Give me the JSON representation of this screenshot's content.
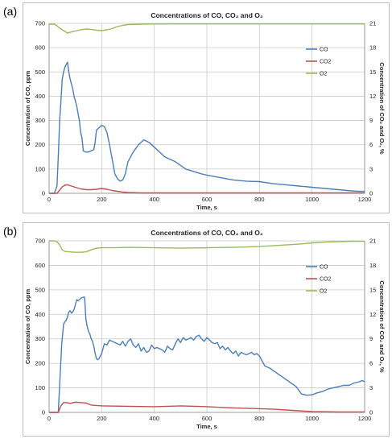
{
  "panels": [
    {
      "tag": "(a)"
    },
    {
      "tag": "(b)"
    }
  ],
  "chart_data": [
    {
      "type": "line",
      "title": "Concentrations of CO,  CO₂ and O₂",
      "xlabel": "Time, s",
      "ylabel": "Concentration of CO, ppm",
      "y2label": "Concentration of CO₂ and O₂, %",
      "xlim": [
        0,
        1200
      ],
      "ylim": [
        0,
        700
      ],
      "y2lim": [
        0,
        21
      ],
      "xticks": [
        0,
        200,
        400,
        600,
        800,
        1000,
        1200
      ],
      "yticks": [
        0,
        100,
        200,
        300,
        400,
        500,
        600,
        700
      ],
      "y2ticks": [
        0,
        3,
        6,
        9,
        12,
        15,
        18,
        21
      ],
      "grid": true,
      "legend_position": "right",
      "series": [
        {
          "name": "CO",
          "color": "#4a7ebb",
          "axis": "left",
          "x": [
            0,
            20,
            30,
            35,
            40,
            45,
            50,
            55,
            60,
            65,
            70,
            75,
            80,
            85,
            90,
            95,
            100,
            105,
            110,
            115,
            120,
            125,
            130,
            140,
            150,
            160,
            170,
            175,
            180,
            190,
            200,
            210,
            220,
            230,
            240,
            250,
            260,
            270,
            280,
            290,
            300,
            310,
            320,
            330,
            340,
            350,
            360,
            370,
            380,
            400,
            420,
            440,
            460,
            480,
            500,
            520,
            550,
            580,
            600,
            650,
            700,
            750,
            800,
            850,
            900,
            950,
            1000,
            1050,
            1100,
            1150,
            1180,
            1200
          ],
          "y": [
            0,
            0,
            30,
            150,
            300,
            380,
            470,
            500,
            520,
            530,
            540,
            500,
            470,
            450,
            430,
            400,
            380,
            360,
            330,
            300,
            250,
            230,
            175,
            170,
            170,
            175,
            180,
            210,
            260,
            270,
            280,
            275,
            250,
            200,
            140,
            80,
            60,
            50,
            55,
            80,
            130,
            150,
            170,
            185,
            200,
            210,
            220,
            215,
            210,
            190,
            170,
            150,
            140,
            130,
            115,
            100,
            90,
            80,
            75,
            65,
            55,
            50,
            48,
            40,
            35,
            30,
            25,
            20,
            15,
            10,
            8,
            8
          ]
        },
        {
          "name": "CO2",
          "color": "#c0504d",
          "axis": "right",
          "x": [
            0,
            30,
            40,
            50,
            60,
            70,
            80,
            90,
            100,
            110,
            120,
            140,
            160,
            180,
            200,
            220,
            240,
            260,
            280,
            300,
            350,
            400,
            500,
            600,
            700,
            800,
            900,
            1000,
            1100,
            1200
          ],
          "y": [
            0,
            0,
            0.4,
            0.8,
            1.0,
            1.05,
            0.95,
            0.85,
            0.75,
            0.65,
            0.55,
            0.45,
            0.45,
            0.5,
            0.6,
            0.5,
            0.35,
            0.25,
            0.15,
            0.1,
            0.05,
            0.05,
            0.05,
            0.05,
            0.05,
            0.05,
            0.05,
            0.05,
            0.05,
            0.05
          ]
        },
        {
          "name": "O2",
          "color": "#9bbb59",
          "axis": "right",
          "x": [
            0,
            20,
            30,
            40,
            50,
            60,
            70,
            80,
            100,
            120,
            140,
            160,
            180,
            200,
            220,
            240,
            260,
            280,
            300,
            350,
            400,
            500,
            600,
            700,
            800,
            900,
            1000,
            1100,
            1200
          ],
          "y": [
            20.9,
            20.9,
            20.7,
            20.4,
            20.2,
            20.0,
            19.8,
            19.9,
            20.05,
            20.2,
            20.3,
            20.25,
            20.15,
            20.1,
            20.2,
            20.35,
            20.6,
            20.75,
            20.85,
            20.9,
            20.92,
            20.93,
            20.93,
            20.93,
            20.93,
            20.93,
            20.93,
            20.93,
            20.93
          ]
        }
      ]
    },
    {
      "type": "line",
      "title": "Concentrations of CO,  CO₂ and O₂",
      "xlabel": "Time, s",
      "ylabel": "Concentration of CO, ppm",
      "y2label": "Concentration of CO₂ and O₂, %",
      "xlim": [
        0,
        1200
      ],
      "ylim": [
        0,
        700
      ],
      "y2lim": [
        0,
        21
      ],
      "xticks": [
        0,
        200,
        400,
        600,
        800,
        1000,
        1200
      ],
      "yticks": [
        0,
        100,
        200,
        300,
        400,
        500,
        600,
        700
      ],
      "y2ticks": [
        0,
        3,
        6,
        9,
        12,
        15,
        18,
        21
      ],
      "grid": true,
      "legend_position": "right",
      "series": [
        {
          "name": "CO",
          "color": "#4a7ebb",
          "axis": "left",
          "x": [
            0,
            35,
            42,
            48,
            55,
            60,
            65,
            70,
            75,
            80,
            85,
            90,
            95,
            100,
            105,
            110,
            115,
            120,
            125,
            130,
            135,
            140,
            145,
            150,
            155,
            160,
            165,
            170,
            175,
            180,
            185,
            190,
            200,
            210,
            220,
            230,
            240,
            250,
            260,
            270,
            280,
            290,
            300,
            310,
            320,
            330,
            340,
            350,
            360,
            370,
            380,
            390,
            400,
            410,
            420,
            430,
            440,
            450,
            460,
            470,
            480,
            490,
            500,
            510,
            520,
            530,
            540,
            550,
            560,
            570,
            580,
            590,
            600,
            610,
            620,
            630,
            640,
            650,
            660,
            670,
            680,
            690,
            700,
            710,
            720,
            730,
            740,
            750,
            760,
            770,
            780,
            790,
            800,
            820,
            840,
            860,
            880,
            900,
            920,
            940,
            960,
            980,
            1000,
            1020,
            1040,
            1060,
            1080,
            1100,
            1120,
            1140,
            1160,
            1180,
            1190,
            1200
          ],
          "y": [
            0,
            0,
            150,
            280,
            360,
            370,
            375,
            390,
            410,
            415,
            405,
            410,
            420,
            440,
            460,
            455,
            460,
            465,
            468,
            470,
            470,
            380,
            350,
            330,
            320,
            300,
            290,
            270,
            240,
            220,
            215,
            220,
            240,
            280,
            275,
            295,
            290,
            285,
            280,
            275,
            290,
            270,
            290,
            300,
            275,
            265,
            280,
            250,
            265,
            245,
            250,
            275,
            260,
            265,
            260,
            255,
            245,
            270,
            260,
            255,
            280,
            300,
            285,
            305,
            295,
            300,
            305,
            295,
            310,
            315,
            300,
            290,
            305,
            295,
            285,
            280,
            285,
            260,
            270,
            255,
            265,
            250,
            240,
            250,
            230,
            245,
            240,
            235,
            240,
            245,
            235,
            240,
            230,
            190,
            180,
            165,
            150,
            135,
            120,
            105,
            75,
            70,
            72,
            80,
            85,
            95,
            100,
            105,
            110,
            110,
            120,
            125,
            130,
            125
          ]
        },
        {
          "name": "CO2",
          "color": "#c0504d",
          "axis": "right",
          "x": [
            0,
            35,
            45,
            55,
            65,
            80,
            100,
            120,
            140,
            160,
            200,
            300,
            400,
            500,
            600,
            700,
            800,
            850,
            900,
            950,
            1000,
            1100,
            1200
          ],
          "y": [
            0,
            0,
            0.8,
            1.2,
            1.2,
            1.1,
            1.25,
            1.2,
            1.15,
            0.9,
            0.8,
            0.75,
            0.7,
            0.8,
            0.7,
            0.55,
            0.45,
            0.4,
            0.3,
            0.2,
            0.1,
            0.05,
            0.05
          ]
        },
        {
          "name": "O2",
          "color": "#9bbb59",
          "axis": "right",
          "x": [
            0,
            20,
            30,
            40,
            50,
            60,
            80,
            100,
            120,
            140,
            160,
            180,
            200,
            250,
            300,
            400,
            500,
            600,
            700,
            800,
            900,
            950,
            1000,
            1050,
            1100,
            1150,
            1200
          ],
          "y": [
            21.0,
            21.0,
            20.9,
            20.5,
            19.9,
            19.7,
            19.65,
            19.6,
            19.6,
            19.65,
            19.9,
            20.1,
            20.15,
            20.15,
            20.2,
            20.15,
            20.1,
            20.15,
            20.2,
            20.3,
            20.5,
            20.6,
            20.75,
            20.85,
            20.9,
            20.95,
            20.95
          ]
        }
      ]
    }
  ]
}
